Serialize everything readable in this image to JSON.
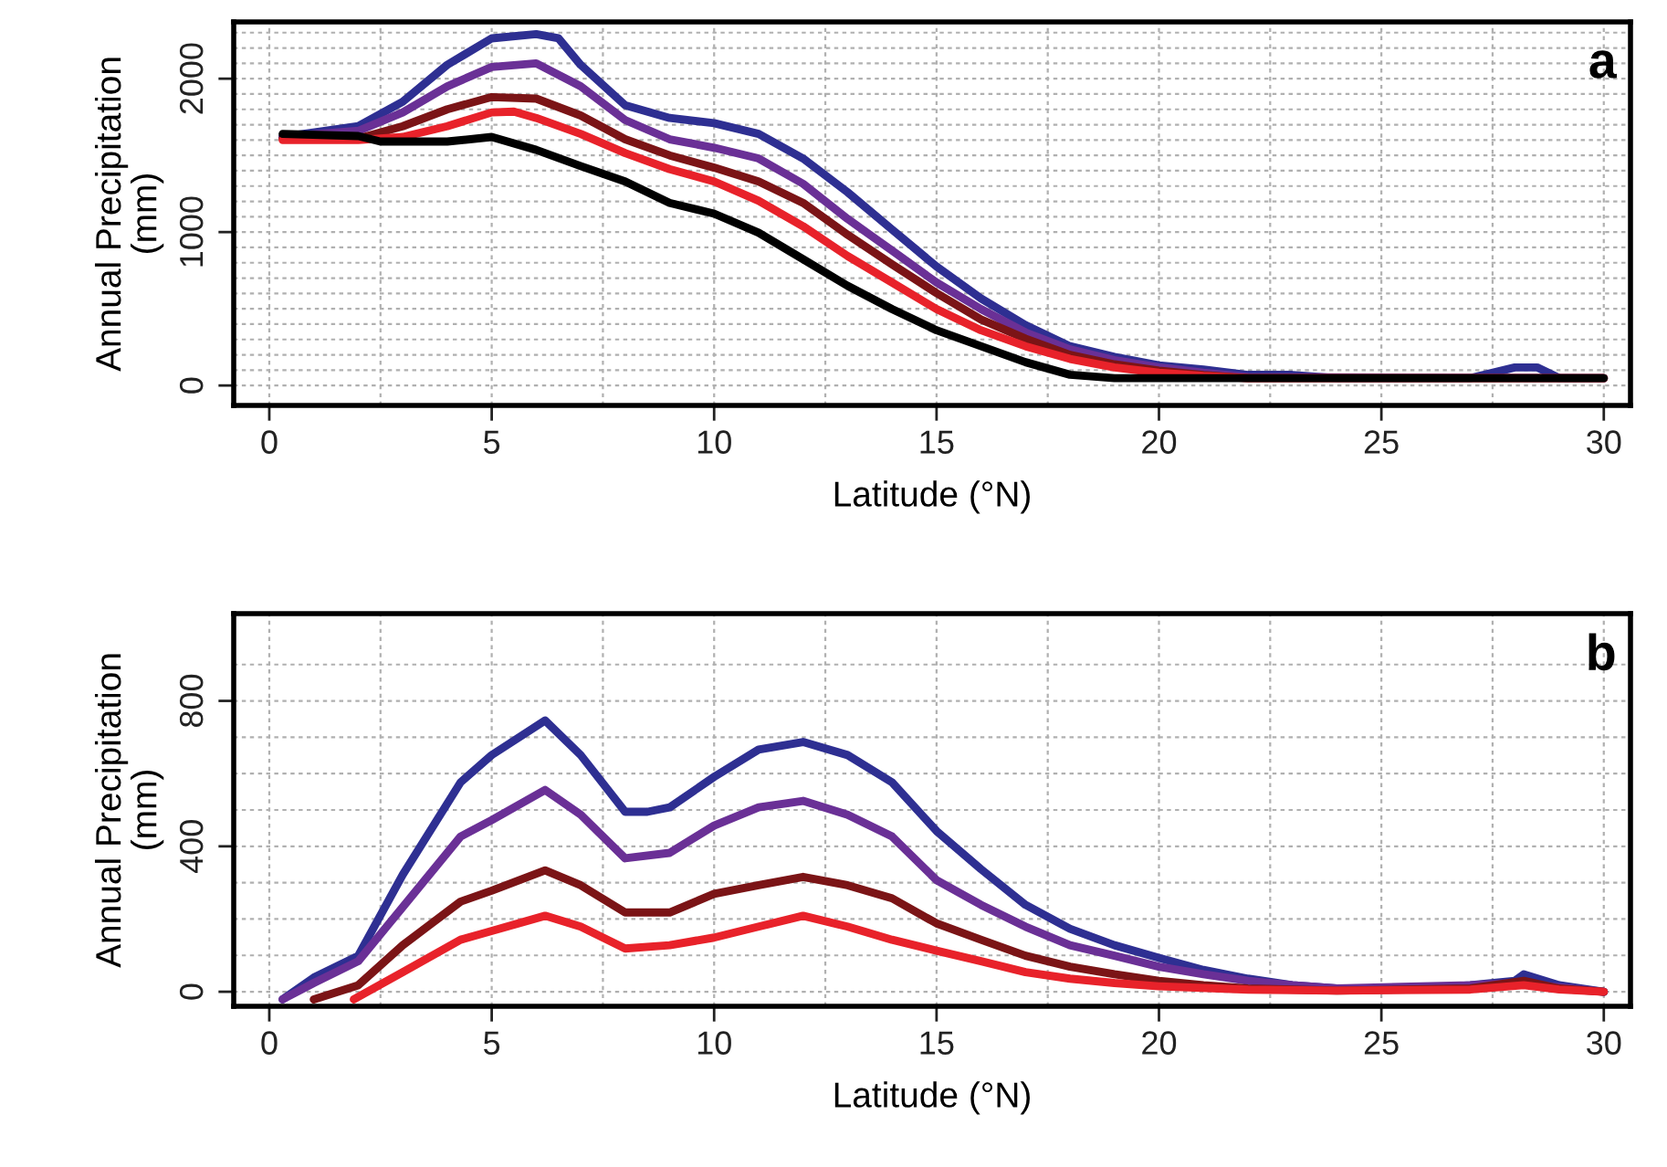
{
  "chart_data": [
    {
      "type": "line",
      "xlabel": "Latitude (°N)",
      "ylabel": "Annual Precipitation\n(mm)",
      "annotations": [
        "a"
      ],
      "grid": true,
      "line_style": "solid",
      "xlim": [
        -0.8,
        30.6
      ],
      "ylim": [
        -130,
        2370
      ],
      "xticks": [
        0,
        {
          "value": 2.5,
          "label": null
        },
        5,
        {
          "value": 7.5,
          "label": null
        },
        10,
        {
          "value": 12.5,
          "label": null
        },
        15,
        {
          "value": 17.5,
          "label": null
        },
        20,
        {
          "value": 22.5,
          "label": null
        },
        25,
        {
          "value": 27.5,
          "label": null
        },
        30
      ],
      "yticks": [
        0,
        {
          "value": 100,
          "label": null
        },
        {
          "value": 200,
          "label": null
        },
        {
          "value": 300,
          "label": null
        },
        {
          "value": 400,
          "label": null
        },
        {
          "value": 500,
          "label": null
        },
        {
          "value": 600,
          "label": null
        },
        {
          "value": 700,
          "label": null
        },
        {
          "value": 800,
          "label": null
        },
        {
          "value": 900,
          "label": null
        },
        1000,
        {
          "value": 1100,
          "label": null
        },
        {
          "value": 1200,
          "label": null
        },
        {
          "value": 1300,
          "label": null
        },
        {
          "value": 1400,
          "label": null
        },
        {
          "value": 1500,
          "label": null
        },
        {
          "value": 1600,
          "label": null
        },
        {
          "value": 1700,
          "label": null
        },
        {
          "value": 1800,
          "label": null
        },
        {
          "value": 1900,
          "label": null
        },
        2000,
        {
          "value": 2100,
          "label": null
        },
        {
          "value": 2200,
          "label": null
        },
        {
          "value": 2300,
          "label": null
        }
      ],
      "series": [
        {
          "color": "#2e2f92",
          "x": [
            0.3,
            2,
            3,
            4,
            5,
            6,
            6.5,
            7,
            8,
            9,
            10,
            11,
            12,
            13,
            14,
            15,
            16,
            17,
            18,
            19,
            20,
            21,
            22,
            23,
            24,
            27,
            28,
            28.5,
            29,
            30
          ],
          "values": [
            1620,
            1690,
            1850,
            2090,
            2263,
            2290,
            2263,
            2090,
            1827,
            1744,
            1710,
            1640,
            1480,
            1260,
            1017,
            775,
            567,
            394,
            256,
            187,
            131,
            104,
            69,
            69,
            48,
            48,
            118,
            118,
            48,
            48
          ]
        },
        {
          "color": "#6a3096",
          "x": [
            0.3,
            2,
            3,
            4,
            5,
            6,
            7,
            8,
            9,
            10,
            11,
            12,
            13,
            14,
            15,
            16,
            17,
            18,
            19,
            20,
            21,
            22,
            30
          ],
          "values": [
            1620,
            1660,
            1780,
            1950,
            2076,
            2100,
            1950,
            1730,
            1605,
            1550,
            1480,
            1315,
            1086,
            879,
            671,
            498,
            346,
            235,
            166,
            118,
            83,
            55,
            48
          ]
        },
        {
          "color": "#7b1416",
          "x": [
            0.3,
            2,
            3,
            4,
            5,
            6,
            7,
            8,
            9,
            10,
            11,
            12,
            13,
            14,
            15,
            16,
            17,
            18,
            19,
            20,
            21,
            22,
            30
          ],
          "values": [
            1610,
            1610,
            1690,
            1800,
            1880,
            1870,
            1760,
            1605,
            1500,
            1420,
            1330,
            1190,
            983,
            790,
            602,
            430,
            305,
            200,
            138,
            97,
            69,
            48,
            48
          ]
        },
        {
          "color": "#e8222a",
          "x": [
            0.3,
            2,
            3,
            4,
            5,
            5.5,
            6,
            7,
            8,
            9,
            10,
            11,
            12,
            13,
            14,
            15,
            16,
            17,
            18,
            19,
            20,
            21,
            22,
            30
          ],
          "values": [
            1600,
            1600,
            1620,
            1690,
            1780,
            1785,
            1744,
            1640,
            1515,
            1410,
            1330,
            1204,
            1038,
            844,
            671,
            498,
            360,
            256,
            173,
            118,
            83,
            62,
            48,
            48
          ]
        },
        {
          "color": "#000000",
          "x": [
            0.3,
            2,
            2.5,
            4,
            5,
            6,
            7,
            8,
            9,
            10,
            11,
            12,
            13,
            14,
            15,
            16,
            17,
            18,
            19,
            20,
            30
          ],
          "values": [
            1640,
            1626,
            1590,
            1590,
            1620,
            1536,
            1430,
            1330,
            1190,
            1120,
            996,
            823,
            650,
            498,
            360,
            256,
            152,
            70,
            48,
            48,
            48
          ]
        }
      ]
    },
    {
      "type": "line",
      "xlabel": "Latitude (°N)",
      "ylabel": "Annual Precipitation\n(mm)",
      "annotations": [
        "b"
      ],
      "grid": true,
      "line_style": "solid",
      "xlim": [
        -0.8,
        30.6
      ],
      "ylim": [
        -40,
        1040
      ],
      "xticks": [
        0,
        {
          "value": 2.5,
          "label": null
        },
        5,
        {
          "value": 7.5,
          "label": null
        },
        10,
        {
          "value": 12.5,
          "label": null
        },
        15,
        {
          "value": 17.5,
          "label": null
        },
        20,
        {
          "value": 22.5,
          "label": null
        },
        25,
        {
          "value": 27.5,
          "label": null
        },
        30
      ],
      "yticks": [
        0,
        {
          "value": 100,
          "label": null
        },
        {
          "value": 200,
          "label": null
        },
        {
          "value": 300,
          "label": null
        },
        400,
        {
          "value": 500,
          "label": null
        },
        {
          "value": 600,
          "label": null
        },
        {
          "value": 700,
          "label": null
        },
        800,
        {
          "value": 900,
          "label": null
        }
      ],
      "series": [
        {
          "color": "#2e2f92",
          "x": [
            0.3,
            1,
            2,
            3,
            4.3,
            5,
            6.2,
            7,
            8,
            8.5,
            9,
            10,
            11,
            12,
            13,
            14,
            15,
            16,
            17,
            18,
            19,
            20,
            21,
            22,
            23,
            24,
            26,
            27,
            28,
            28.2,
            29,
            30
          ],
          "values": [
            -21,
            39,
            99,
            322,
            576,
            651,
            746,
            651,
            495,
            495,
            507,
            591,
            666,
            687,
            651,
            576,
            442,
            337,
            239,
            173,
            128,
            93,
            60,
            36,
            18,
            9,
            9,
            18,
            30,
            48,
            18,
            0
          ]
        },
        {
          "color": "#6a3096",
          "x": [
            0.3,
            1,
            2,
            3,
            4.3,
            5,
            6.2,
            7,
            8,
            9,
            10,
            11,
            12,
            13,
            14,
            15,
            16,
            17,
            18,
            19,
            20,
            21,
            22,
            23,
            24,
            27,
            28,
            29,
            30
          ],
          "values": [
            -21,
            24,
            84,
            233,
            427,
            472,
            555,
            487,
            367,
            382,
            457,
            507,
            525,
            487,
            427,
            307,
            239,
            179,
            128,
            99,
            69,
            48,
            30,
            18,
            9,
            18,
            24,
            12,
            0
          ]
        },
        {
          "color": "#7b1416",
          "x": [
            1,
            2,
            3,
            4.3,
            5,
            6.2,
            7,
            8,
            9,
            10,
            11,
            12,
            13,
            14,
            15,
            16,
            17,
            18,
            19,
            20,
            21,
            22,
            24,
            27,
            28.2,
            29,
            30
          ],
          "values": [
            -21,
            18,
            128,
            248,
            278,
            334,
            293,
            218,
            218,
            269,
            293,
            316,
            293,
            257,
            188,
            143,
            99,
            69,
            48,
            30,
            18,
            9,
            3,
            9,
            30,
            9,
            0
          ]
        },
        {
          "color": "#e8222a",
          "x": [
            1.9,
            3,
            4.3,
            5,
            6.2,
            7,
            8,
            9,
            10,
            11,
            12,
            13,
            14,
            15,
            16,
            17,
            18,
            19,
            20,
            22,
            24,
            27,
            28.2,
            29,
            30
          ],
          "values": [
            -21,
            54,
            143,
            167,
            209,
            179,
            119,
            128,
            149,
            179,
            209,
            179,
            143,
            113,
            84,
            54,
            36,
            24,
            15,
            6,
            3,
            6,
            18,
            6,
            0
          ]
        }
      ]
    }
  ]
}
